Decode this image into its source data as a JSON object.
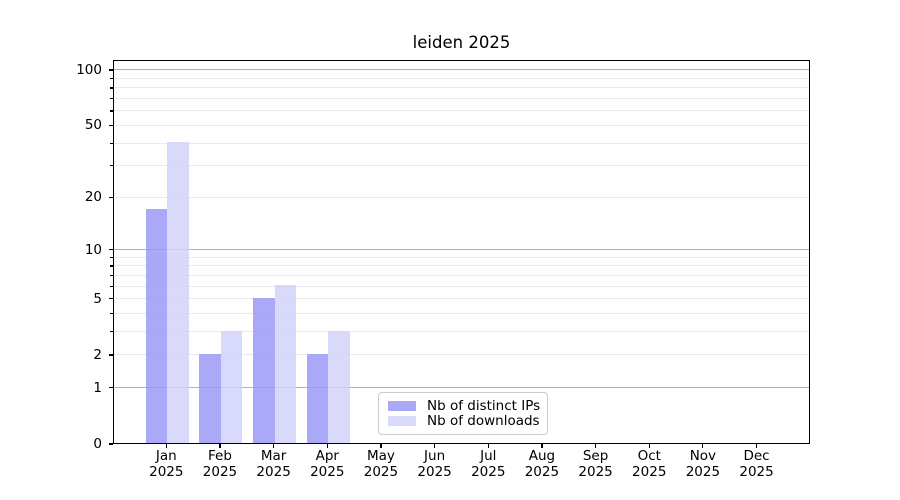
{
  "chart_data": {
    "type": "bar",
    "title": "leiden 2025",
    "categories": [
      "Jan",
      "Feb",
      "Mar",
      "Apr",
      "May",
      "Jun",
      "Jul",
      "Aug",
      "Sep",
      "Oct",
      "Nov",
      "Dec"
    ],
    "category_year": "2025",
    "series": [
      {
        "name": "Nb of distinct IPs",
        "color": "#a9a9f7",
        "values": [
          17,
          2,
          5,
          2,
          0,
          0,
          0,
          0,
          0,
          0,
          0,
          0
        ]
      },
      {
        "name": "Nb of downloads",
        "color": "#d9d9fa",
        "values": [
          40,
          3,
          6,
          3,
          0,
          0,
          0,
          0,
          0,
          0,
          0,
          0
        ]
      }
    ],
    "xlabel": "",
    "ylabel": "",
    "yscale": "log1p",
    "ylim": [
      0,
      110
    ],
    "yticks_labeled": [
      0,
      1,
      2,
      5,
      10,
      20,
      50,
      100
    ],
    "yticks_minor": [
      3,
      4,
      6,
      7,
      8,
      9,
      30,
      40,
      60,
      70,
      80,
      90
    ],
    "gridlines_major_at": [
      1,
      10,
      100
    ],
    "gridlines_minor_at": [
      2,
      3,
      4,
      5,
      6,
      7,
      8,
      9,
      20,
      30,
      40,
      50,
      60,
      70,
      80,
      90
    ],
    "grid": "horizontal",
    "legend_position": "inside lower center"
  },
  "colors": {
    "bar_distinct_ips": "#a9a9f7",
    "bar_downloads": "#d9d9fa",
    "bar_distinct_ips_base": "rgba(154,154,246,0.85)",
    "bar_downloads_base": "rgba(210,210,250,0.85)",
    "grid_major": "#b0b0b0",
    "grid_minor": "#e9e9ef",
    "axis": "#000000",
    "legend_border": "#cccccc"
  },
  "legend": {
    "items": [
      {
        "label": "Nb of distinct IPs"
      },
      {
        "label": "Nb of downloads"
      }
    ]
  }
}
